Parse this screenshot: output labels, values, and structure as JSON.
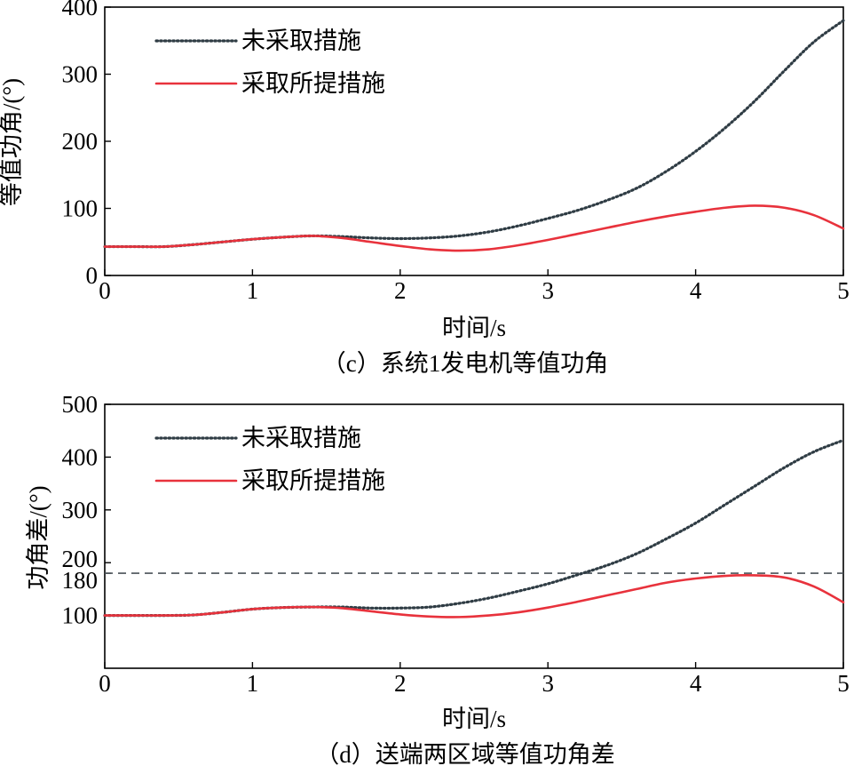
{
  "chart_data": [
    {
      "type": "line",
      "caption": "（c）系统1发电机等值功角",
      "xlabel": "时间/s",
      "ylabel": "等值功角/(°)",
      "xlim": [
        0,
        5
      ],
      "ylim": [
        0,
        400
      ],
      "xticks": [
        "0",
        "1",
        "2",
        "3",
        "4",
        "5"
      ],
      "yticks": [
        "0",
        "100",
        "200",
        "300",
        "400"
      ],
      "legend_position": "top-left",
      "grid": false,
      "series": [
        {
          "name": "未采取措施",
          "style": "dotted",
          "color": "#2f3c44",
          "x": [
            0,
            0.2,
            0.4,
            0.6,
            0.8,
            1.0,
            1.2,
            1.4,
            1.6,
            1.8,
            2.0,
            2.2,
            2.4,
            2.6,
            2.8,
            3.0,
            3.2,
            3.4,
            3.6,
            3.8,
            4.0,
            4.2,
            4.4,
            4.6,
            4.8,
            5.0
          ],
          "y": [
            43,
            43,
            43,
            46,
            50,
            54,
            57,
            59,
            58,
            56,
            55,
            56,
            59,
            65,
            74,
            85,
            97,
            112,
            130,
            155,
            185,
            220,
            260,
            305,
            348,
            380
          ]
        },
        {
          "name": "采取所提措施",
          "style": "solid",
          "color": "#e8323c",
          "x": [
            0,
            0.2,
            0.4,
            0.6,
            0.8,
            1.0,
            1.2,
            1.4,
            1.6,
            1.8,
            2.0,
            2.2,
            2.4,
            2.6,
            2.8,
            3.0,
            3.2,
            3.4,
            3.6,
            3.8,
            4.0,
            4.2,
            4.4,
            4.6,
            4.8,
            5.0
          ],
          "y": [
            43,
            43,
            43,
            46,
            50,
            54,
            57,
            59,
            56,
            50,
            44,
            39,
            37,
            39,
            45,
            53,
            62,
            71,
            80,
            88,
            95,
            101,
            104,
            101,
            90,
            70
          ]
        }
      ]
    },
    {
      "type": "line",
      "caption": "（d）送端两区域等值功角差",
      "xlabel": "时间/s",
      "ylabel": "功角差/(°)",
      "xlim": [
        0,
        5
      ],
      "ylim": [
        0,
        500
      ],
      "xticks": [
        "0",
        "1",
        "2",
        "3",
        "4",
        "5"
      ],
      "yticks": [
        "100",
        "180",
        "200",
        "300",
        "400",
        "500"
      ],
      "reference_line": {
        "y": 180,
        "style": "dashed",
        "color": "#4a5258"
      },
      "legend_position": "top-left",
      "grid": false,
      "series": [
        {
          "name": "未采取措施",
          "style": "dotted",
          "color": "#2f3c44",
          "x": [
            0,
            0.2,
            0.4,
            0.6,
            0.8,
            1.0,
            1.2,
            1.4,
            1.6,
            1.8,
            2.0,
            2.2,
            2.4,
            2.6,
            2.8,
            3.0,
            3.2,
            3.4,
            3.6,
            3.8,
            4.0,
            4.2,
            4.4,
            4.6,
            4.8,
            5.0
          ],
          "y": [
            100,
            100,
            100,
            101,
            106,
            112,
            115,
            116,
            116,
            114,
            114,
            116,
            123,
            133,
            146,
            160,
            177,
            195,
            217,
            245,
            275,
            310,
            345,
            380,
            410,
            432
          ]
        },
        {
          "name": "采取所提措施",
          "style": "solid",
          "color": "#e8323c",
          "x": [
            0,
            0.2,
            0.4,
            0.6,
            0.8,
            1.0,
            1.2,
            1.4,
            1.6,
            1.8,
            2.0,
            2.2,
            2.4,
            2.6,
            2.8,
            3.0,
            3.2,
            3.4,
            3.6,
            3.8,
            4.0,
            4.2,
            4.4,
            4.6,
            4.8,
            5.0
          ],
          "y": [
            100,
            100,
            100,
            101,
            106,
            112,
            115,
            116,
            114,
            108,
            102,
            98,
            97,
            100,
            106,
            115,
            126,
            138,
            150,
            162,
            170,
            175,
            176,
            172,
            155,
            125
          ]
        }
      ]
    }
  ]
}
